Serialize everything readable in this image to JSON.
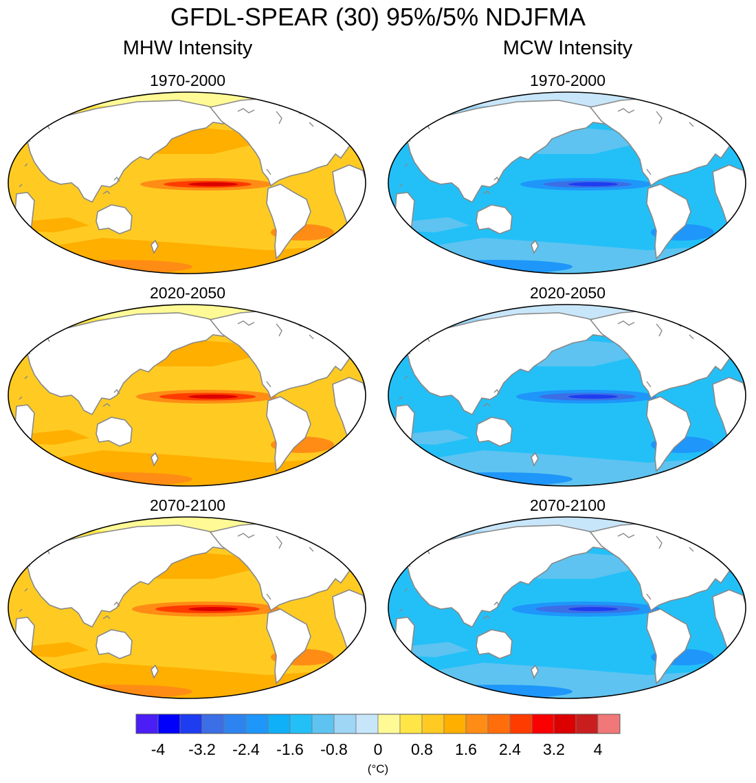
{
  "title": "GFDL-SPEAR (30) 95%/5% NDJFMA",
  "columns": [
    {
      "title": "MHW Intensity",
      "theme": "warm"
    },
    {
      "title": "MCW Intensity",
      "theme": "cool"
    }
  ],
  "periods": [
    "1970-2000",
    "2020-2050",
    "2070-2100"
  ],
  "colorbar": {
    "unit": "(°C)",
    "tick_labels": [
      "-4",
      "-3.2",
      "-2.4",
      "-1.6",
      "-0.8",
      "0",
      "0.8",
      "1.6",
      "2.4",
      "3.2",
      "4"
    ],
    "colors": [
      "#4a1ef5",
      "#0000fb",
      "#1e3cf0",
      "#3c6ee6",
      "#2d84f0",
      "#1e96fa",
      "#0fb0f7",
      "#23c0f8",
      "#5ec3f0",
      "#9fd5f5",
      "#c8e6fa",
      "#fffa96",
      "#ffe646",
      "#ffcb23",
      "#ffaf00",
      "#ff8c14",
      "#ff6e0a",
      "#ff3c00",
      "#fa0000",
      "#dc0000",
      "#c81e1e",
      "#f07878"
    ]
  },
  "map_colors": {
    "warm": {
      "ocean": "#ffcb23",
      "mid": "#ffaf00",
      "strong": "#ff8c14",
      "peak": "#ff3c00",
      "extreme": "#dc0000",
      "polar": "#fffa96",
      "polar2": "#ffe646"
    },
    "cool": {
      "ocean": "#23c0f8",
      "mid": "#5ec3f0",
      "strong": "#1e96fa",
      "peak": "#3c6ee6",
      "extreme": "#1e3cf0",
      "polar": "#c8e6fa",
      "polar2": "#9fd5f5"
    },
    "land": "#ffffff",
    "coast": "#888888"
  }
}
